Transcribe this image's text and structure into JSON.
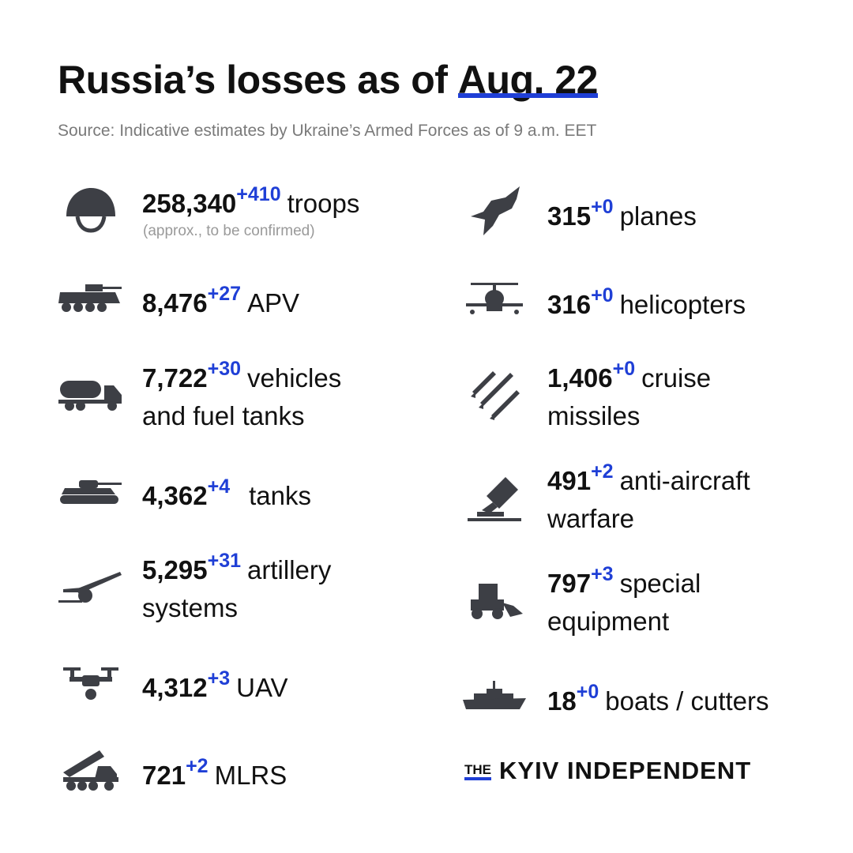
{
  "header": {
    "title": "Russia’s losses as of",
    "date": "Aug. 22",
    "source": "Source: Indicative estimates by Ukraine’s Armed Forces as of 9 a.m. EET"
  },
  "items": [
    {
      "value": "258,340",
      "delta": "+410",
      "label": "troops",
      "note": "(approx., to be confirmed)",
      "icon": "helmet-icon"
    },
    {
      "value": "8,476",
      "delta": "+27",
      "label": "APV",
      "icon": "apv-icon"
    },
    {
      "value": "7,722",
      "delta": "+30",
      "label": "vehicles",
      "label2": "and fuel tanks",
      "icon": "fuel-truck-icon"
    },
    {
      "value": "4,362",
      "delta": "+4",
      "label": "tanks",
      "icon": "tank-icon"
    },
    {
      "value": "5,295",
      "delta": "+31",
      "label": "artillery",
      "label2": "systems",
      "icon": "artillery-icon"
    },
    {
      "value": "4,312",
      "delta": "+3",
      "label": "UAV",
      "icon": "drone-icon"
    },
    {
      "value": "721",
      "delta": "+2",
      "label": "MLRS",
      "icon": "mlrs-icon"
    },
    {
      "value": "315",
      "delta": "+0",
      "label": "planes",
      "icon": "plane-icon"
    },
    {
      "value": "316",
      "delta": "+0",
      "label": "helicopters",
      "icon": "helicopter-icon"
    },
    {
      "value": "1,406",
      "delta": "+0",
      "label": "cruise",
      "label2": "missiles",
      "icon": "missiles-icon"
    },
    {
      "value": "491",
      "delta": "+2",
      "label": "anti-aircraft",
      "label2": "warfare",
      "icon": "anti-aircraft-icon"
    },
    {
      "value": "797",
      "delta": "+3",
      "label": "special",
      "label2": "equipment",
      "icon": "loader-icon"
    },
    {
      "value": "18",
      "delta": "+0",
      "label": "boats / cutters",
      "icon": "boat-icon"
    }
  ],
  "footer": {
    "logo_the": "THE",
    "logo_name": "KYIV INDEPENDENT"
  },
  "colors": {
    "accent": "#1f3fd6",
    "icon": "#3d3f45",
    "text": "#111111",
    "muted": "#7a7a7a"
  }
}
